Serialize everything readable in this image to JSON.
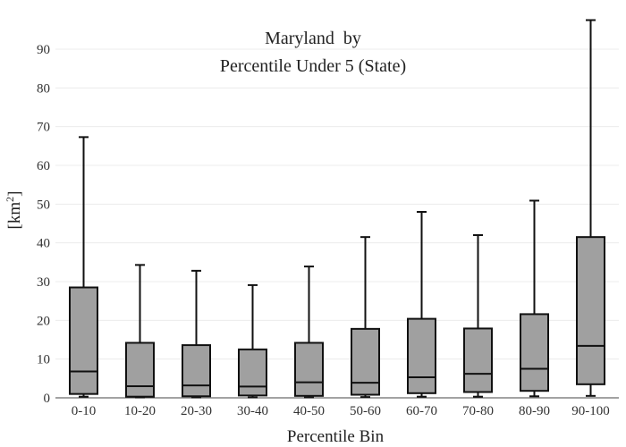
{
  "chart_data": {
    "type": "box",
    "title_line1": "Maryland  by",
    "title_line2": "Percentile Under 5 (State)",
    "xlabel": "Percentile Bin",
    "ylabel": "[km",
    "ylabel_sup": "2",
    "ylabel_close": "]",
    "ylim": [
      0,
      99
    ],
    "yticks": [
      0,
      10,
      20,
      30,
      40,
      50,
      60,
      70,
      80,
      90
    ],
    "grid": true,
    "box_color": "#a0a0a0",
    "line_color": "#111111",
    "categories": [
      "0-10",
      "10-20",
      "20-30",
      "30-40",
      "40-50",
      "50-60",
      "60-70",
      "70-80",
      "80-90",
      "90-100"
    ],
    "boxes": [
      {
        "min": 0.3,
        "q1": 1.0,
        "median": 6.8,
        "q3": 28.5,
        "max": 67.3
      },
      {
        "min": 0.1,
        "q1": 0.3,
        "median": 3.0,
        "q3": 14.2,
        "max": 34.3
      },
      {
        "min": 0.1,
        "q1": 0.4,
        "median": 3.2,
        "q3": 13.6,
        "max": 32.8
      },
      {
        "min": 0.1,
        "q1": 0.6,
        "median": 2.9,
        "q3": 12.5,
        "max": 29.1
      },
      {
        "min": 0.1,
        "q1": 0.5,
        "median": 4.0,
        "q3": 14.2,
        "max": 33.9
      },
      {
        "min": 0.2,
        "q1": 0.8,
        "median": 3.9,
        "q3": 17.8,
        "max": 41.5
      },
      {
        "min": 0.3,
        "q1": 1.2,
        "median": 5.3,
        "q3": 20.4,
        "max": 48.0
      },
      {
        "min": 0.3,
        "q1": 1.5,
        "median": 6.2,
        "q3": 17.9,
        "max": 42.0
      },
      {
        "min": 0.4,
        "q1": 1.8,
        "median": 7.5,
        "q3": 21.6,
        "max": 50.9
      },
      {
        "min": 0.5,
        "q1": 3.5,
        "median": 13.4,
        "q3": 41.5,
        "max": 97.5
      }
    ]
  }
}
